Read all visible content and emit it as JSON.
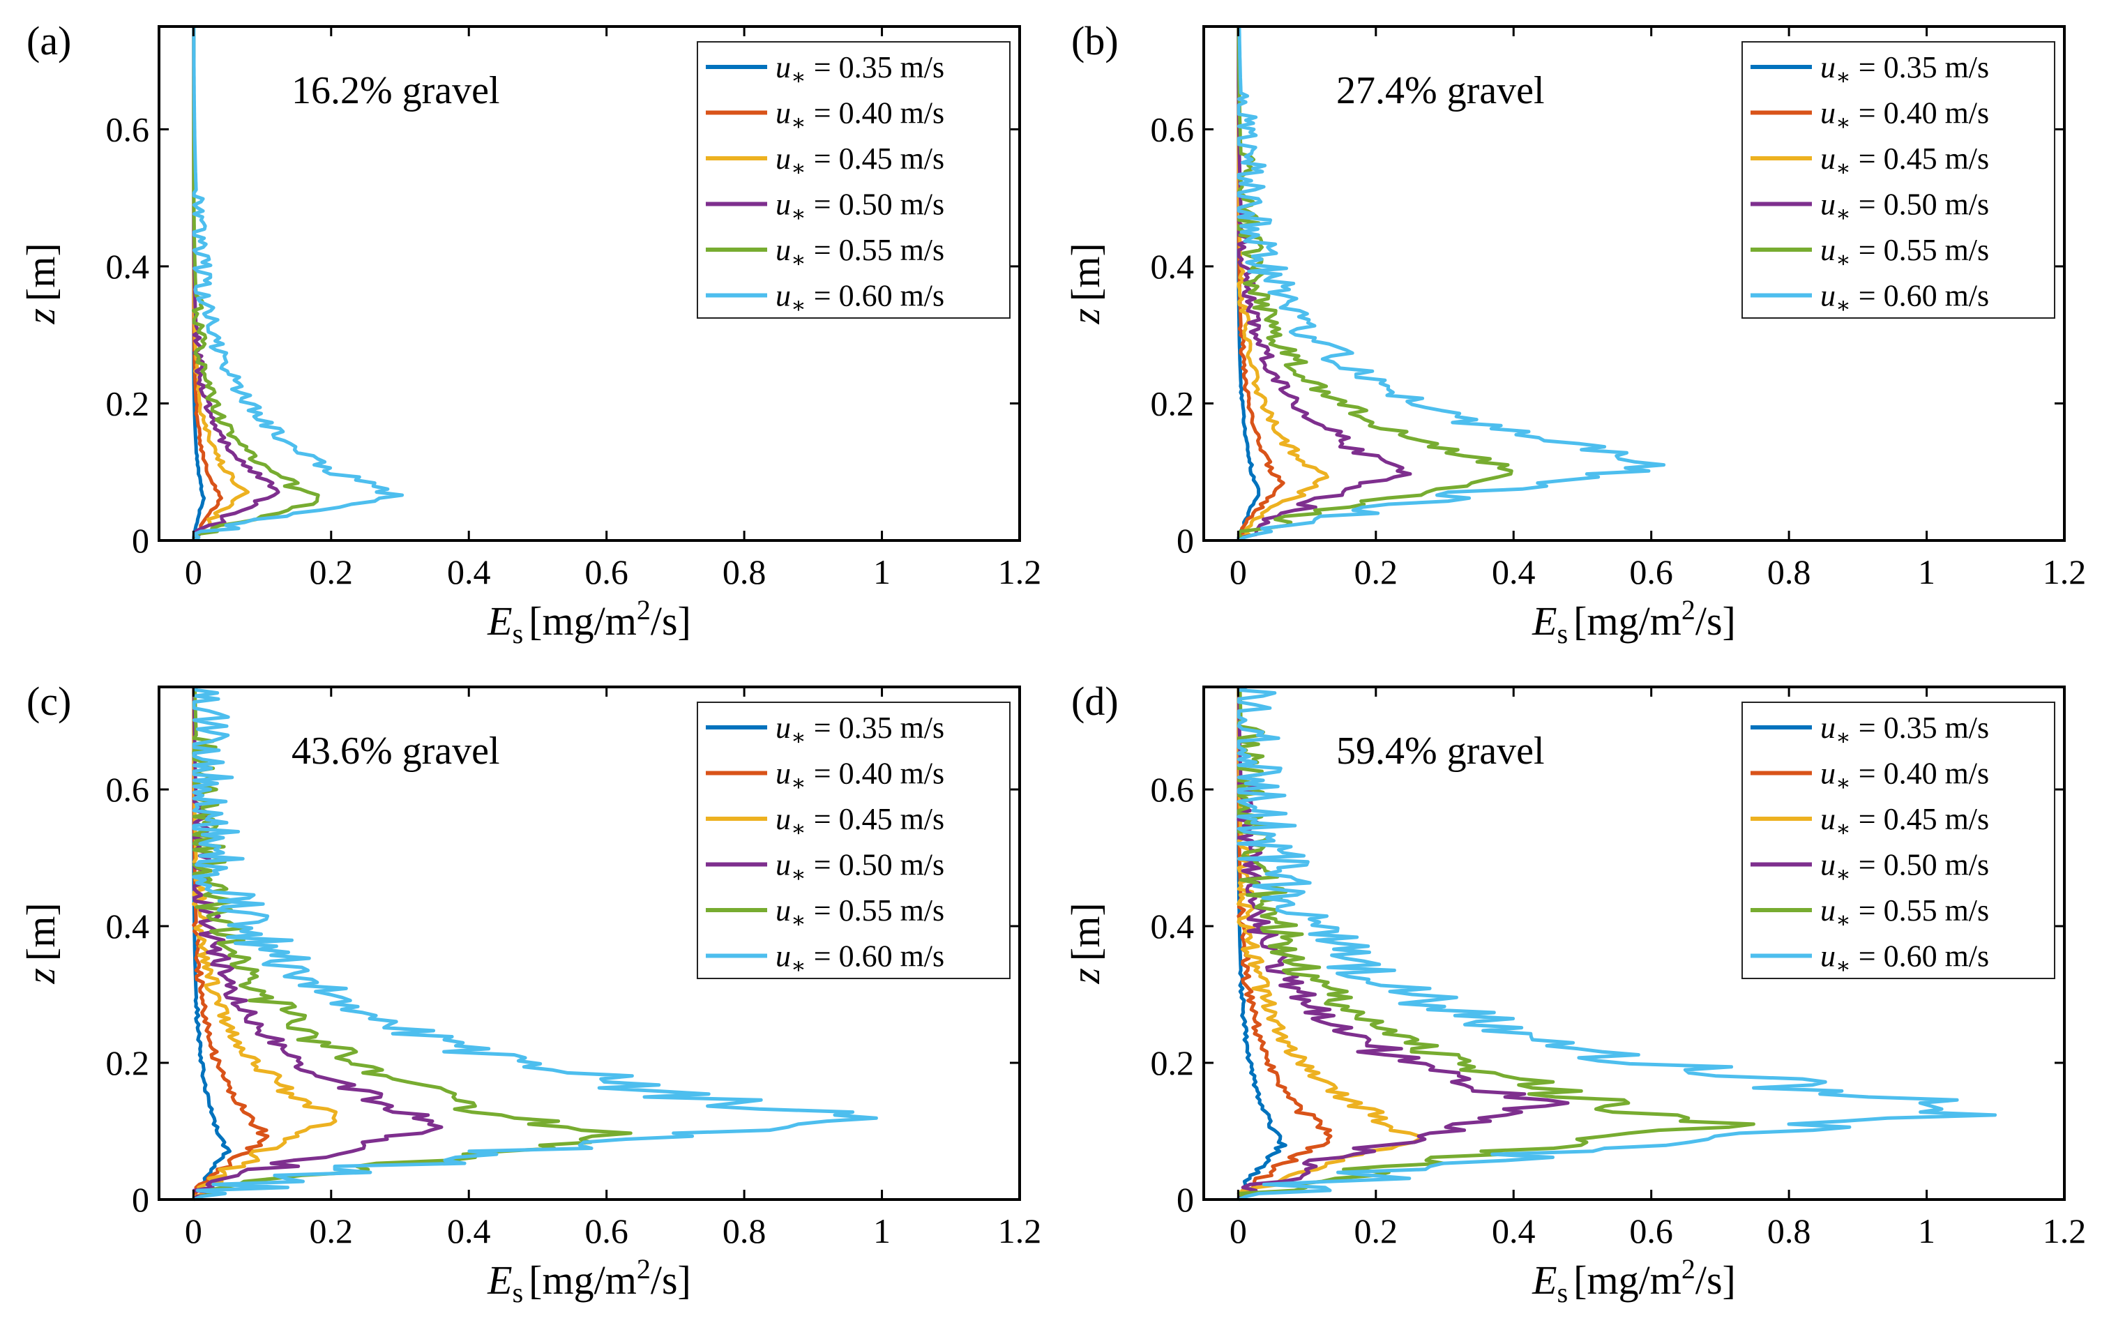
{
  "figure": {
    "panels": [
      {
        "label": "(a)",
        "annotation": "16.2% gravel"
      },
      {
        "label": "(b)",
        "annotation": "27.4% gravel"
      },
      {
        "label": "(c)",
        "annotation": "43.6% gravel"
      },
      {
        "label": "(d)",
        "annotation": "59.4% gravel"
      }
    ]
  },
  "chart_data": [
    {
      "type": "line",
      "panel": "(a)",
      "annotation": "16.2% gravel",
      "xlabel": "E_s [mg/m^2/s]",
      "ylabel": "z [m]",
      "xlim": [
        -0.05,
        1.2
      ],
      "ylim": [
        0,
        0.75
      ],
      "xticks": [
        "0",
        "0.2",
        "0.4",
        "0.6",
        "0.8",
        "1",
        "1.2"
      ],
      "yticks": [
        "0",
        "0.2",
        "0.4",
        "0.6"
      ],
      "legend_position": "top-right",
      "series": [
        {
          "name": "u* = 0.35 m/s",
          "color": "#0072BD",
          "peak_x": 0.015,
          "peak_z": 0.06,
          "top_z": 0.3
        },
        {
          "name": "u* = 0.40 m/s",
          "color": "#D95319",
          "peak_x": 0.04,
          "peak_z": 0.06,
          "top_z": 0.32
        },
        {
          "name": "u* = 0.45 m/s",
          "color": "#EDB120",
          "peak_x": 0.08,
          "peak_z": 0.07,
          "top_z": 0.34
        },
        {
          "name": "u* = 0.50 m/s",
          "color": "#7E2F8E",
          "peak_x": 0.13,
          "peak_z": 0.07,
          "top_z": 0.36
        },
        {
          "name": "u* = 0.55 m/s",
          "color": "#77AC30",
          "peak_x": 0.19,
          "peak_z": 0.06,
          "top_z": 0.38
        },
        {
          "name": "u* = 0.60 m/s",
          "color": "#4DBEEE",
          "peak_x": 0.29,
          "peak_z": 0.065,
          "top_z": 0.5
        }
      ]
    },
    {
      "type": "line",
      "panel": "(b)",
      "annotation": "27.4% gravel",
      "xlabel": "E_s [mg/m^2/s]",
      "ylabel": "z [m]",
      "xlim": [
        -0.05,
        1.2
      ],
      "ylim": [
        0,
        0.75
      ],
      "xticks": [
        "0",
        "0.2",
        "0.4",
        "0.6",
        "0.8",
        "1",
        "1.2"
      ],
      "yticks": [
        "0",
        "0.2",
        "0.4",
        "0.6"
      ],
      "legend_position": "top-right",
      "series": [
        {
          "name": "u* = 0.35 m/s",
          "color": "#0072BD",
          "peak_x": 0.03,
          "peak_z": 0.07,
          "top_z": 0.4
        },
        {
          "name": "u* = 0.40 m/s",
          "color": "#D95319",
          "peak_x": 0.065,
          "peak_z": 0.08,
          "top_z": 0.43
        },
        {
          "name": "u* = 0.45 m/s",
          "color": "#EDB120",
          "peak_x": 0.13,
          "peak_z": 0.09,
          "top_z": 0.46
        },
        {
          "name": "u* = 0.50 m/s",
          "color": "#7E2F8E",
          "peak_x": 0.25,
          "peak_z": 0.1,
          "top_z": 0.49
        },
        {
          "name": "u* = 0.55 m/s",
          "color": "#77AC30",
          "peak_x": 0.41,
          "peak_z": 0.1,
          "top_z": 0.52
        },
        {
          "name": "u* = 0.60 m/s",
          "color": "#4DBEEE",
          "peak_x": 0.63,
          "peak_z": 0.11,
          "top_z": 0.56
        }
      ]
    },
    {
      "type": "line",
      "panel": "(c)",
      "annotation": "43.6% gravel",
      "xlabel": "E_s [mg/m^2/s]",
      "ylabel": "z [m]",
      "xlim": [
        -0.05,
        1.2
      ],
      "ylim": [
        0,
        0.75
      ],
      "xticks": [
        "0",
        "0.2",
        "0.4",
        "0.6",
        "0.8",
        "1",
        "1.2"
      ],
      "yticks": [
        "0",
        "0.2",
        "0.4",
        "0.6"
      ],
      "legend_position": "top-right",
      "series": [
        {
          "name": "u* = 0.35 m/s",
          "color": "#0072BD",
          "peak_x": 0.05,
          "peak_z": 0.07,
          "top_z": 0.45
        },
        {
          "name": "u* = 0.40 m/s",
          "color": "#D95319",
          "peak_x": 0.11,
          "peak_z": 0.09,
          "top_z": 0.49
        },
        {
          "name": "u* = 0.45 m/s",
          "color": "#EDB120",
          "peak_x": 0.21,
          "peak_z": 0.12,
          "top_z": 0.52
        },
        {
          "name": "u* = 0.50 m/s",
          "color": "#7E2F8E",
          "peak_x": 0.37,
          "peak_z": 0.11,
          "top_z": 0.55
        },
        {
          "name": "u* = 0.55 m/s",
          "color": "#77AC30",
          "peak_x": 0.62,
          "peak_z": 0.09,
          "top_z": 0.58
        },
        {
          "name": "u* = 0.60 m/s",
          "color": "#4DBEEE",
          "peak_x": 0.95,
          "peak_z": 0.12,
          "top_z": 0.6
        }
      ]
    },
    {
      "type": "line",
      "panel": "(d)",
      "annotation": "59.4% gravel",
      "xlabel": "E_s [mg/m^2/s]",
      "ylabel": "z [m]",
      "xlim": [
        -0.05,
        1.2
      ],
      "ylim": [
        0,
        0.75
      ],
      "xticks": [
        "0",
        "0.2",
        "0.4",
        "0.6",
        "0.8",
        "1",
        "1.2"
      ],
      "yticks": [
        "0",
        "0.2",
        "0.4",
        "0.6"
      ],
      "legend_position": "top-right",
      "series": [
        {
          "name": "u* = 0.35 m/s",
          "color": "#0072BD",
          "peak_x": 0.065,
          "peak_z": 0.08,
          "top_z": 0.46
        },
        {
          "name": "u* = 0.40 m/s",
          "color": "#D95319",
          "peak_x": 0.14,
          "peak_z": 0.09,
          "top_z": 0.5
        },
        {
          "name": "u* = 0.45 m/s",
          "color": "#EDB120",
          "peak_x": 0.27,
          "peak_z": 0.09,
          "top_z": 0.53
        },
        {
          "name": "u* = 0.50 m/s",
          "color": "#7E2F8E",
          "peak_x": 0.45,
          "peak_z": 0.14,
          "top_z": 0.56
        },
        {
          "name": "u* = 0.55 m/s",
          "color": "#77AC30",
          "peak_x": 0.7,
          "peak_z": 0.11,
          "top_z": 0.59
        },
        {
          "name": "u* = 0.60 m/s",
          "color": "#4DBEEE",
          "peak_x": 1.1,
          "peak_z": 0.13,
          "top_z": 0.62
        }
      ]
    }
  ]
}
